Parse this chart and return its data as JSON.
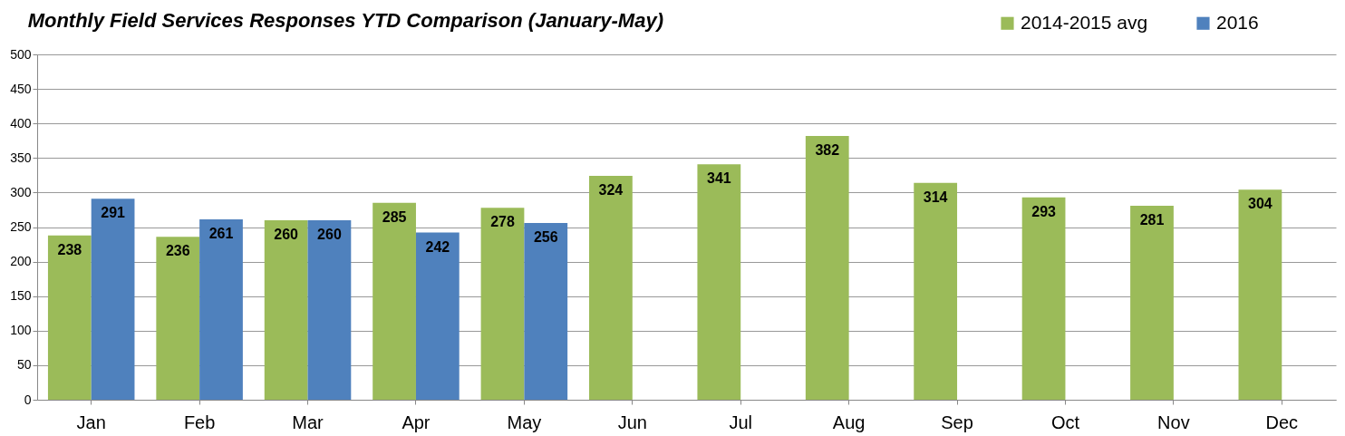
{
  "chart_data": {
    "type": "bar",
    "title": "Monthly Field Services Responses YTD Comparison (January-May)",
    "categories": [
      "Jan",
      "Feb",
      "Mar",
      "Apr",
      "May",
      "Jun",
      "Jul",
      "Aug",
      "Sep",
      "Oct",
      "Nov",
      "Dec"
    ],
    "series": [
      {
        "name": "2014-2015 avg",
        "color": "#9bbb59",
        "values": [
          238,
          236,
          260,
          285,
          278,
          324,
          341,
          382,
          314,
          293,
          281,
          304
        ]
      },
      {
        "name": "2016",
        "color": "#4f81bd",
        "values": [
          291,
          261,
          260,
          242,
          256,
          null,
          null,
          null,
          null,
          null,
          null,
          null
        ]
      }
    ],
    "ylim": [
      0,
      500
    ],
    "yticks": [
      0,
      50,
      100,
      150,
      200,
      250,
      300,
      350,
      400,
      450,
      500
    ],
    "grid": "y",
    "legend": "top right",
    "data_labels": true
  }
}
